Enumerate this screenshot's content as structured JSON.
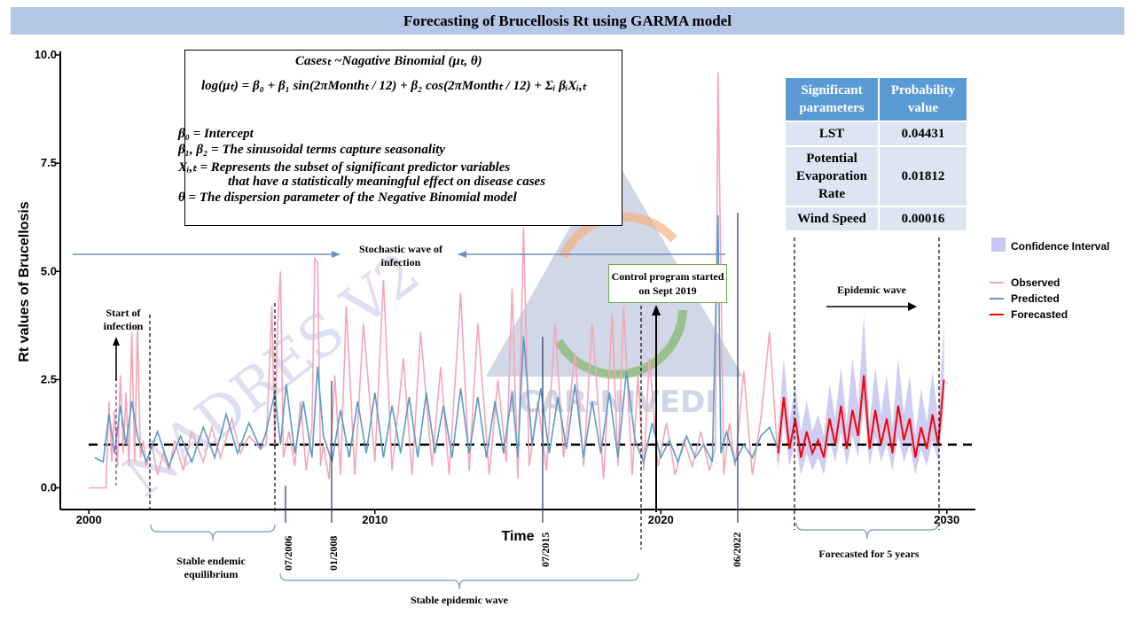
{
  "title": "Forecasting of Brucellosis Rt using GARMA model",
  "equation": {
    "line1": "Casesₜ ~Nagative Binomial (μₜ, θ)",
    "line2": "log(μₜ) = β₀ + β₁ sin(2πMonthₜ / 12) + β₂ cos(2πMonthₜ / 12) + Σᵢ βᵢXᵢ,ₜ",
    "def1": "β₀ = Intercept",
    "def2": "β₁, β₂ = The sinusoidal terms capture seasonality",
    "def3a": "Xᵢ,ₜ = Represents  the  subset  of  significant  predictor  variables",
    "def3b": "that have a statistically meaningful effect on disease cases",
    "def4": "θ = The dispersion parameter of the Negative Binomial model"
  },
  "table": {
    "headers": [
      "Significant parameters",
      "Probability value"
    ],
    "rows": [
      {
        "param": "LST",
        "value": "0.04431"
      },
      {
        "param": "Potential Evaporation Rate",
        "value": "0.01812"
      },
      {
        "param": "Wind Speed",
        "value": "0.00016"
      }
    ]
  },
  "annotations": {
    "start_infection": "Start of infection",
    "stochastic_wave": "Stochastic wave of infection",
    "control_program": "Control program started on Sept 2019",
    "epidemic_wave": "Epidemic wave",
    "stable_endemic": "Stable endemic equilibrium",
    "stable_epidemic": "Stable epidemic wave",
    "forecasted_5y": "Forecasted for 5 years",
    "marker_2006": "07/2006",
    "marker_2008": "01/2008",
    "marker_2015": "07/2015",
    "marker_2022": "06/2022"
  },
  "legend": {
    "confidence": "Confidence Interval",
    "observed": "Observed",
    "predicted": "Predicted",
    "forecasted": "Forecasted"
  },
  "colors": {
    "observed": "#f4a6b6",
    "predicted": "#5b9bc8",
    "forecasted": "#ff0000",
    "confidence": "#c8c8f4",
    "title_bg": "#b4c7e7",
    "table_header": "#5b9bd5"
  },
  "watermark": "NADRES V2 • ICAR-NIVEDI",
  "chart_data": {
    "type": "line",
    "title": "Forecasting of Brucellosis Rt using GARMA model",
    "xlabel": "Time",
    "ylabel": "Rt values of Brucellosis",
    "xlim": [
      1999,
      2031
    ],
    "ylim": [
      -0.5,
      10.0
    ],
    "xticks": [
      2000,
      2010,
      2020,
      2030
    ],
    "yticks": [
      0.0,
      2.5,
      5.0,
      7.5,
      10.0
    ],
    "ytick_labels": [
      "0.0",
      "2.5",
      "5.0",
      "7.5",
      "10.0"
    ],
    "threshold": 1.0,
    "grid": false,
    "legend_position": "right",
    "series": [
      {
        "name": "Observed",
        "x": [
          2000.0,
          2000.5,
          2000.6,
          2000.7,
          2000.8,
          2000.9,
          2001.0,
          2001.1,
          2001.2,
          2001.3,
          2001.4,
          2001.5,
          2001.6,
          2001.7,
          2001.8,
          2001.9,
          2002.0,
          2002.2,
          2002.4,
          2002.6,
          2002.8,
          2003.0,
          2003.3,
          2003.6,
          2004.0,
          2004.3,
          2004.6,
          2005.0,
          2005.3,
          2005.6,
          2006.0,
          2006.2,
          2006.4,
          2006.5,
          2006.6,
          2006.7,
          2006.8,
          2007.0,
          2007.2,
          2007.4,
          2007.6,
          2007.8,
          2007.9,
          2008.0,
          2008.1,
          2008.2,
          2008.4,
          2008.6,
          2008.8,
          2009.0,
          2009.3,
          2009.6,
          2010.0,
          2010.3,
          2010.6,
          2011.0,
          2011.3,
          2011.6,
          2012.0,
          2012.3,
          2012.6,
          2013.0,
          2013.3,
          2013.6,
          2014.0,
          2014.3,
          2014.6,
          2014.8,
          2015.0,
          2015.2,
          2015.4,
          2015.7,
          2016.0,
          2016.3,
          2016.6,
          2017.0,
          2017.3,
          2017.6,
          2018.0,
          2018.3,
          2018.5,
          2018.7,
          2019.0,
          2019.2,
          2019.4,
          2019.6,
          2019.9,
          2020.2,
          2020.5,
          2020.8,
          2021.1,
          2021.4,
          2021.7,
          2021.9,
          2022.0,
          2022.2,
          2022.4,
          2022.6,
          2022.9,
          2023.2,
          2023.5,
          2023.8,
          2024.1
        ],
        "values": [
          0.0,
          0.0,
          0.0,
          2.0,
          0.6,
          1.8,
          0.5,
          2.6,
          0.8,
          2.2,
          0.5,
          3.6,
          0.6,
          3.8,
          0.7,
          1.1,
          0.5,
          1.0,
          0.3,
          0.8,
          0.4,
          1.1,
          0.4,
          1.3,
          0.6,
          1.4,
          0.7,
          1.6,
          0.8,
          1.2,
          0.9,
          1.0,
          4.2,
          1.0,
          3.8,
          5.0,
          0.7,
          1.3,
          0.5,
          2.0,
          0.4,
          1.4,
          5.3,
          5.2,
          0.5,
          1.0,
          0.2,
          2.6,
          0.3,
          4.2,
          0.3,
          3.8,
          0.6,
          4.8,
          0.4,
          3.0,
          0.3,
          3.6,
          0.5,
          2.8,
          0.3,
          4.5,
          0.4,
          3.8,
          0.3,
          2.5,
          0.6,
          4.6,
          0.2,
          6.0,
          0.5,
          2.0,
          0.4,
          3.8,
          0.7,
          3.1,
          0.5,
          3.8,
          0.2,
          4.0,
          0.5,
          4.2,
          0.3,
          2.6,
          0.4,
          3.0,
          0.5,
          1.5,
          0.3,
          1.1,
          0.5,
          1.3,
          0.4,
          0.9,
          9.6,
          0.3,
          1.5,
          0.5,
          2.7,
          0.3,
          1.6,
          3.6,
          0.6
        ]
      },
      {
        "name": "Predicted",
        "x": [
          2000.2,
          2000.5,
          2000.7,
          2000.9,
          2001.1,
          2001.3,
          2001.5,
          2001.7,
          2002.0,
          2002.4,
          2002.8,
          2003.2,
          2003.6,
          2004.0,
          2004.4,
          2004.8,
          2005.2,
          2005.6,
          2006.0,
          2006.2,
          2006.5,
          2006.7,
          2006.9,
          2007.2,
          2007.5,
          2007.8,
          2008.0,
          2008.2,
          2008.5,
          2008.8,
          2009.1,
          2009.4,
          2009.7,
          2010.0,
          2010.3,
          2010.6,
          2010.9,
          2011.2,
          2011.5,
          2011.8,
          2012.1,
          2012.4,
          2012.7,
          2013.0,
          2013.3,
          2013.6,
          2013.9,
          2014.2,
          2014.5,
          2014.8,
          2015.0,
          2015.2,
          2015.5,
          2015.8,
          2016.1,
          2016.4,
          2016.7,
          2017.0,
          2017.3,
          2017.6,
          2017.9,
          2018.2,
          2018.5,
          2018.8,
          2019.1,
          2019.4,
          2019.7,
          2020.0,
          2020.3,
          2020.6,
          2020.9,
          2021.2,
          2021.5,
          2021.8,
          2022.0,
          2022.1,
          2022.3,
          2022.6,
          2022.9,
          2023.2,
          2023.5,
          2023.8,
          2024.1
        ],
        "values": [
          0.7,
          0.6,
          1.7,
          0.8,
          1.9,
          1.0,
          2.0,
          1.2,
          0.6,
          1.3,
          0.5,
          1.2,
          0.6,
          1.4,
          0.7,
          1.7,
          0.8,
          1.5,
          0.9,
          1.3,
          2.2,
          1.0,
          2.4,
          0.8,
          2.0,
          0.7,
          2.8,
          1.2,
          0.6,
          1.8,
          0.7,
          2.0,
          0.8,
          2.2,
          0.7,
          1.9,
          0.8,
          2.1,
          0.7,
          2.2,
          0.8,
          1.9,
          0.7,
          2.3,
          0.8,
          2.1,
          0.7,
          2.0,
          0.8,
          2.2,
          0.7,
          3.5,
          1.0,
          2.3,
          0.8,
          2.1,
          0.9,
          2.4,
          0.7,
          2.0,
          0.8,
          2.2,
          0.7,
          2.7,
          1.1,
          0.6,
          1.5,
          0.7,
          1.1,
          0.6,
          1.2,
          0.7,
          1.0,
          0.6,
          6.3,
          0.8,
          1.3,
          0.6,
          1.0,
          0.7,
          1.2,
          1.4,
          0.9
        ]
      },
      {
        "name": "Forecasted",
        "x": [
          2024.1,
          2024.3,
          2024.5,
          2024.7,
          2024.9,
          2025.1,
          2025.3,
          2025.5,
          2025.7,
          2025.9,
          2026.1,
          2026.3,
          2026.5,
          2026.7,
          2026.9,
          2027.1,
          2027.3,
          2027.5,
          2027.7,
          2027.9,
          2028.1,
          2028.3,
          2028.5,
          2028.7,
          2028.9,
          2029.1,
          2029.3,
          2029.5,
          2029.7,
          2029.9
        ],
        "values": [
          0.8,
          2.1,
          0.9,
          1.6,
          0.7,
          1.3,
          0.8,
          1.1,
          0.7,
          1.6,
          1.0,
          1.9,
          0.9,
          1.8,
          1.2,
          2.6,
          0.9,
          1.8,
          1.0,
          1.6,
          0.8,
          1.9,
          1.1,
          1.6,
          0.7,
          1.4,
          0.9,
          1.7,
          1.0,
          2.5
        ]
      }
    ],
    "confidence_interval": {
      "name": "Confidence Interval",
      "x": [
        2024.1,
        2024.3,
        2024.5,
        2024.7,
        2024.9,
        2025.1,
        2025.3,
        2025.5,
        2025.7,
        2025.9,
        2026.1,
        2026.3,
        2026.5,
        2026.7,
        2026.9,
        2027.1,
        2027.3,
        2027.5,
        2027.7,
        2027.9,
        2028.1,
        2028.3,
        2028.5,
        2028.7,
        2028.9,
        2029.1,
        2029.3,
        2029.5,
        2029.7,
        2029.9
      ],
      "lower": [
        0.4,
        1.5,
        0.5,
        1.1,
        0.3,
        0.8,
        0.4,
        0.7,
        0.3,
        1.1,
        0.6,
        1.3,
        0.5,
        1.2,
        0.7,
        1.9,
        0.5,
        1.2,
        0.6,
        1.0,
        0.4,
        1.2,
        0.6,
        1.0,
        0.3,
        0.9,
        0.5,
        1.1,
        0.6,
        1.8
      ],
      "upper": [
        1.3,
        3.0,
        1.5,
        2.4,
        1.3,
        2.0,
        1.3,
        1.7,
        1.2,
        2.4,
        1.6,
        2.8,
        1.5,
        3.0,
        1.9,
        4.0,
        1.5,
        2.8,
        1.7,
        2.6,
        1.4,
        3.0,
        1.7,
        2.6,
        1.2,
        2.3,
        1.5,
        2.7,
        1.6,
        3.8
      ]
    }
  }
}
